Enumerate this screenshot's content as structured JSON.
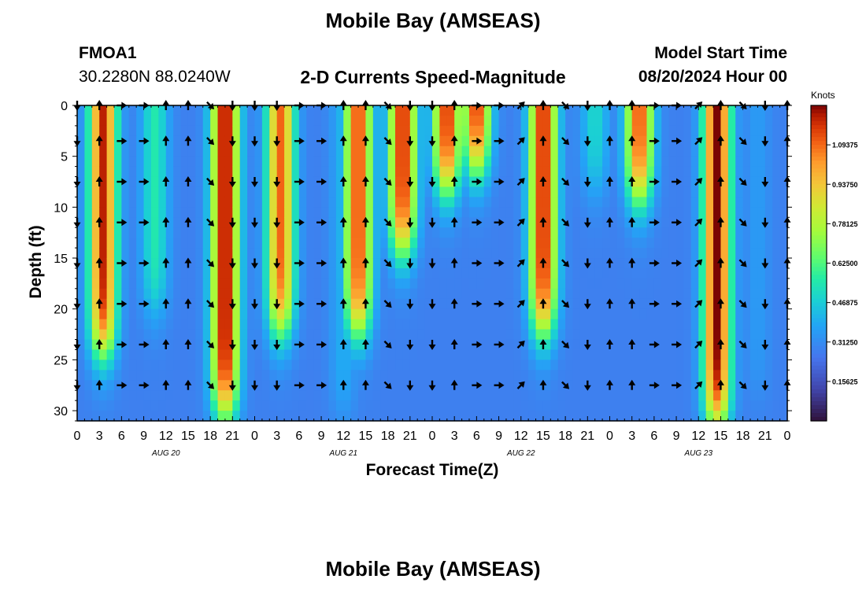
{
  "chart_data": {
    "type": "heatmap",
    "title": "Mobile Bay (AMSEAS)",
    "subtitle": "2-D Currents Speed-Magnitude",
    "station": {
      "id": "FMOA1",
      "location": "30.2280N  88.0240W"
    },
    "model_start": {
      "label": "Model Start Time",
      "value": "08/20/2024 Hour 00"
    },
    "xlabel": "Forecast Time(Z)",
    "ylabel": "Depth (ft)",
    "x_tick_labels": [
      "0",
      "3",
      "6",
      "9",
      "12",
      "15",
      "18",
      "21",
      "0",
      "3",
      "6",
      "9",
      "12",
      "15",
      "18",
      "21",
      "0",
      "3",
      "6",
      "9",
      "12",
      "15",
      "18",
      "21",
      "0",
      "3",
      "6",
      "9",
      "12",
      "15",
      "18",
      "21",
      "0"
    ],
    "xlim_hours": [
      0,
      96
    ],
    "date_labels": [
      {
        "text": "AUG 20",
        "hour": 12
      },
      {
        "text": "AUG 21",
        "hour": 36
      },
      {
        "text": "AUG 22",
        "hour": 60
      },
      {
        "text": "AUG 23",
        "hour": 84
      }
    ],
    "y_ticks": [
      0,
      5,
      10,
      15,
      20,
      25,
      30
    ],
    "ylim": [
      0,
      31
    ],
    "y_inverted": true,
    "colorbar": {
      "label": "Knots",
      "range": [
        0,
        1.25
      ],
      "tick_values": [
        0.15625,
        0.3125,
        0.46875,
        0.625,
        0.78125,
        0.9375,
        1.09375
      ],
      "tick_labels": [
        "0.15625",
        "0.31250",
        "0.46875",
        "0.62500",
        "0.78125",
        "0.93750",
        "1.09375"
      ]
    },
    "speed_peaks": [
      {
        "hour": 3.5,
        "speed_knots": 1.2,
        "max_depth_ft": 24
      },
      {
        "hour": 10.5,
        "speed_knots": 0.55,
        "max_depth_ft": 20
      },
      {
        "hour": 20,
        "speed_knots": 1.25,
        "max_depth_ft": 30
      },
      {
        "hour": 27.5,
        "speed_knots": 1.1,
        "max_depth_ft": 22
      },
      {
        "hour": 36,
        "speed_knots": 0.4,
        "max_depth_ft": 30
      },
      {
        "hour": 38,
        "speed_knots": 1.15,
        "max_depth_ft": 22
      },
      {
        "hour": 44,
        "speed_knots": 1.2,
        "max_depth_ft": 14
      },
      {
        "hour": 50,
        "speed_knots": 1.2,
        "max_depth_ft": 8
      },
      {
        "hour": 54,
        "speed_knots": 1.2,
        "max_depth_ft": 6
      },
      {
        "hour": 63,
        "speed_knots": 1.2,
        "max_depth_ft": 22
      },
      {
        "hour": 70,
        "speed_knots": 0.5,
        "max_depth_ft": 8
      },
      {
        "hour": 76,
        "speed_knots": 1.15,
        "max_depth_ft": 9
      },
      {
        "hour": 86.5,
        "speed_knots": 1.25,
        "max_depth_ft": 31
      },
      {
        "hour": 92,
        "speed_knots": 0.35,
        "max_depth_ft": 28
      }
    ],
    "arrows": {
      "hours": [
        0,
        3,
        6,
        9,
        12,
        15,
        18,
        21,
        24,
        27,
        30,
        33,
        36,
        39,
        42,
        45,
        48,
        51,
        54,
        57,
        60,
        63,
        66,
        69,
        72,
        75,
        78,
        81,
        84,
        87,
        90,
        93,
        96
      ],
      "depths_ft": [
        0,
        3.5,
        7.5,
        11.5,
        15.5,
        19.5,
        23.5,
        27.5
      ],
      "directions": [
        "S",
        "N",
        "E",
        "E",
        "N",
        "N",
        "SE",
        "S",
        "S",
        "S",
        "E",
        "E",
        "N",
        "N",
        "SE",
        "S",
        "S",
        "N",
        "E",
        "E",
        "NE",
        "N",
        "SE",
        "S",
        "N",
        "N",
        "E",
        "E",
        "NE",
        "N",
        "SE",
        "S",
        "N"
      ]
    }
  },
  "footer_title": "Mobile Bay (AMSEAS)"
}
